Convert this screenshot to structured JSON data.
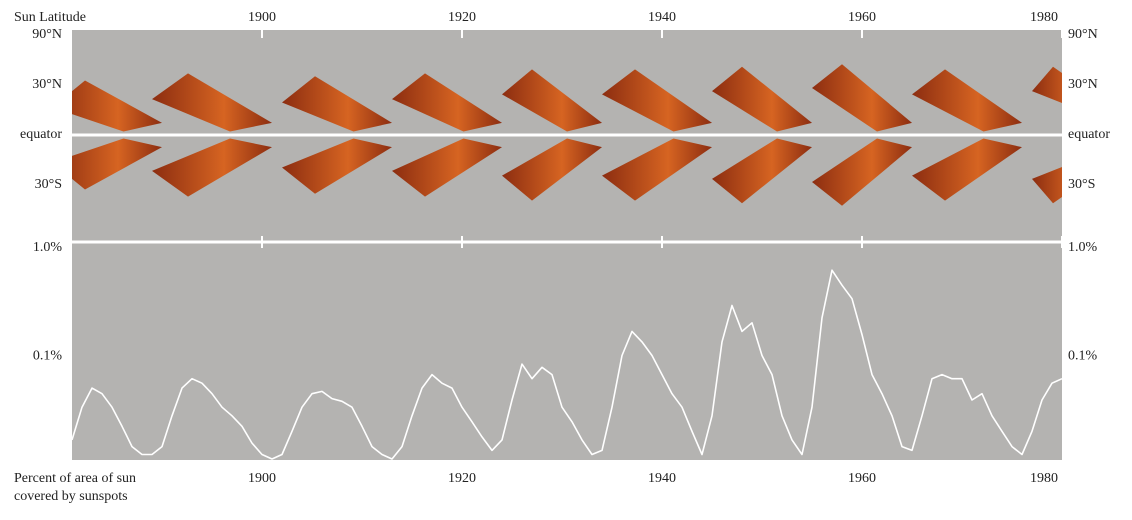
{
  "chart_data": [
    {
      "type": "butterfly",
      "title": "Sun Latitude",
      "xlim": [
        1881,
        1980
      ],
      "xticks": [
        1900,
        1920,
        1940,
        1960,
        1980
      ],
      "ylim": [
        -90,
        90
      ],
      "yscale": "sine",
      "yticks": [
        {
          "value": 90,
          "label": "90°N"
        },
        {
          "value": 30,
          "label": "30°N"
        },
        {
          "value": 0,
          "label": "equator"
        },
        {
          "value": -30,
          "label": "30°S"
        }
      ],
      "color": "#8a2608",
      "highlight": "#d8601a",
      "cycles": [
        {
          "x": [
            1879,
            1890
          ],
          "lat": [
            30,
            5
          ]
        },
        {
          "x": [
            1889,
            1901
          ],
          "lat": [
            35,
            5
          ]
        },
        {
          "x": [
            1902,
            1913
          ],
          "lat": [
            33,
            5
          ]
        },
        {
          "x": [
            1913,
            1924
          ],
          "lat": [
            35,
            5
          ]
        },
        {
          "x": [
            1924,
            1934
          ],
          "lat": [
            38,
            5
          ]
        },
        {
          "x": [
            1934,
            1945
          ],
          "lat": [
            38,
            5
          ]
        },
        {
          "x": [
            1945,
            1955
          ],
          "lat": [
            40,
            5
          ]
        },
        {
          "x": [
            1955,
            1965
          ],
          "lat": [
            42,
            5
          ]
        },
        {
          "x": [
            1965,
            1976
          ],
          "lat": [
            38,
            5
          ]
        },
        {
          "x": [
            1977,
            1984
          ],
          "lat": [
            40,
            18
          ]
        }
      ]
    },
    {
      "type": "line",
      "xlabel": [
        "Percent of area of sun",
        "covered by sunspots"
      ],
      "xlim": [
        1881,
        1980
      ],
      "xticks": [
        1900,
        1920,
        1940,
        1960,
        1980
      ],
      "ylim": [
        0.01,
        1
      ],
      "log": true,
      "yticks": [
        {
          "value": 1,
          "label": "1.0%"
        },
        {
          "value": 0.1,
          "label": "0.1%"
        }
      ],
      "color": "#ffffff",
      "x": [
        1881,
        1882,
        1883,
        1884,
        1885,
        1886,
        1887,
        1888,
        1889,
        1890,
        1891,
        1892,
        1893,
        1894,
        1895,
        1896,
        1897,
        1898,
        1899,
        1900,
        1901,
        1902,
        1903,
        1904,
        1905,
        1906,
        1907,
        1908,
        1909,
        1910,
        1911,
        1912,
        1913,
        1914,
        1915,
        1916,
        1917,
        1918,
        1919,
        1920,
        1921,
        1922,
        1923,
        1924,
        1925,
        1926,
        1927,
        1928,
        1929,
        1930,
        1931,
        1932,
        1933,
        1934,
        1935,
        1936,
        1937,
        1938,
        1939,
        1940,
        1941,
        1942,
        1943,
        1944,
        1945,
        1946,
        1947,
        1948,
        1949,
        1950,
        1951,
        1952,
        1953,
        1954,
        1955,
        1956,
        1957,
        1958,
        1959,
        1960,
        1961,
        1962,
        1963,
        1964,
        1965,
        1966,
        1967,
        1968,
        1969,
        1970,
        1971,
        1972,
        1973,
        1974,
        1975,
        1976,
        1977,
        1978,
        1979,
        1980
      ],
      "values": [
        0.015,
        0.03,
        0.045,
        0.04,
        0.03,
        0.02,
        0.013,
        0.011,
        0.011,
        0.013,
        0.025,
        0.045,
        0.055,
        0.05,
        0.04,
        0.03,
        0.025,
        0.02,
        0.014,
        0.011,
        0.01,
        0.011,
        0.018,
        0.03,
        0.04,
        0.042,
        0.036,
        0.034,
        0.03,
        0.02,
        0.013,
        0.011,
        0.01,
        0.013,
        0.025,
        0.045,
        0.06,
        0.05,
        0.045,
        0.03,
        0.022,
        0.016,
        0.012,
        0.015,
        0.035,
        0.075,
        0.055,
        0.07,
        0.06,
        0.03,
        0.022,
        0.015,
        0.011,
        0.012,
        0.03,
        0.09,
        0.15,
        0.12,
        0.09,
        0.06,
        0.04,
        0.03,
        0.018,
        0.011,
        0.025,
        0.12,
        0.26,
        0.15,
        0.18,
        0.09,
        0.06,
        0.025,
        0.015,
        0.011,
        0.03,
        0.2,
        0.55,
        0.4,
        0.3,
        0.14,
        0.06,
        0.04,
        0.025,
        0.013,
        0.012,
        0.025,
        0.055,
        0.06,
        0.055,
        0.055,
        0.035,
        0.04,
        0.025,
        0.018,
        0.013,
        0.011,
        0.018,
        0.035,
        0.05,
        0.055
      ]
    }
  ]
}
